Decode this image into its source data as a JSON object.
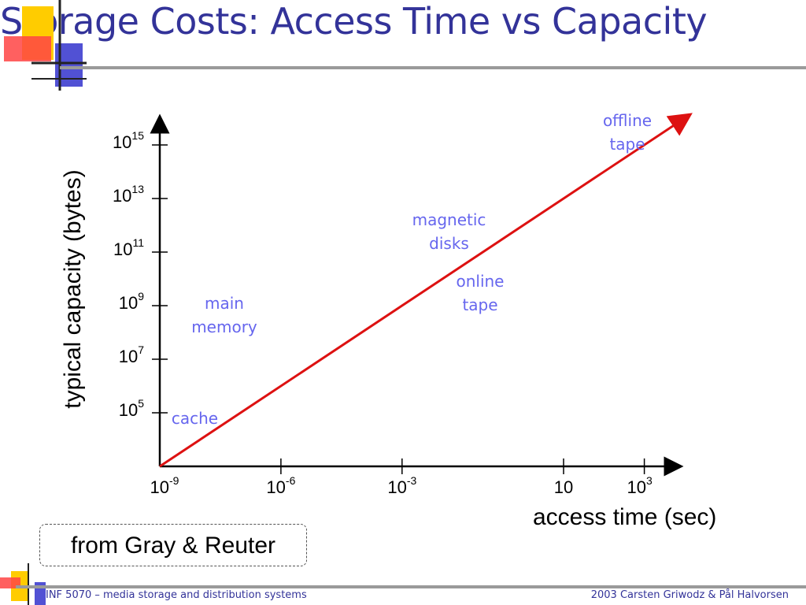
{
  "slide": {
    "title": "Storage Costs: Access Time vs Capacity",
    "source_note": "from Gray & Reuter",
    "footer_left": "INF 5070 – media storage and distribution systems",
    "footer_right": "2003  Carsten Griwodz & Pål Halvorsen",
    "colors": {
      "title": "#333399",
      "accent_red": "#ff3333",
      "accent_blue": "#3333cc",
      "accent_yellow": "#ffcc00",
      "line": "#dd1111",
      "annotation": "#6666ee"
    }
  },
  "chart_data": {
    "type": "line",
    "xlabel": "access time (sec)",
    "ylabel": "typical capacity (bytes)",
    "x_scale": "log",
    "y_scale": "log",
    "x_ticks": [
      {
        "base": "10",
        "exp": "-9",
        "value": 1e-09
      },
      {
        "base": "10",
        "exp": "-6",
        "value": 1e-06
      },
      {
        "base": "10",
        "exp": "-3",
        "value": 0.001
      },
      {
        "base": "10",
        "exp": "",
        "value": 10
      },
      {
        "base": "10",
        "exp": "3",
        "value": 1000
      }
    ],
    "y_ticks": [
      {
        "base": "10",
        "exp": "15",
        "value": 1000000000000000.0
      },
      {
        "base": "10",
        "exp": "13",
        "value": 10000000000000.0
      },
      {
        "base": "10",
        "exp": "11",
        "value": 100000000000.0
      },
      {
        "base": "10",
        "exp": "9",
        "value": 1000000000.0
      },
      {
        "base": "10",
        "exp": "7",
        "value": 10000000.0
      },
      {
        "base": "10",
        "exp": "5",
        "value": 100000.0
      }
    ],
    "series": [
      {
        "points": [
          {
            "x": 1e-09,
            "y": 1000.0
          },
          {
            "x": 10000.0,
            "y": 1e+16
          }
        ]
      }
    ],
    "annotations": [
      {
        "text": "cache"
      },
      {
        "text": "main\nmemory"
      },
      {
        "text": "magnetic\ndisks"
      },
      {
        "text": "online\ntape"
      },
      {
        "text": "offline\ntape"
      }
    ]
  }
}
